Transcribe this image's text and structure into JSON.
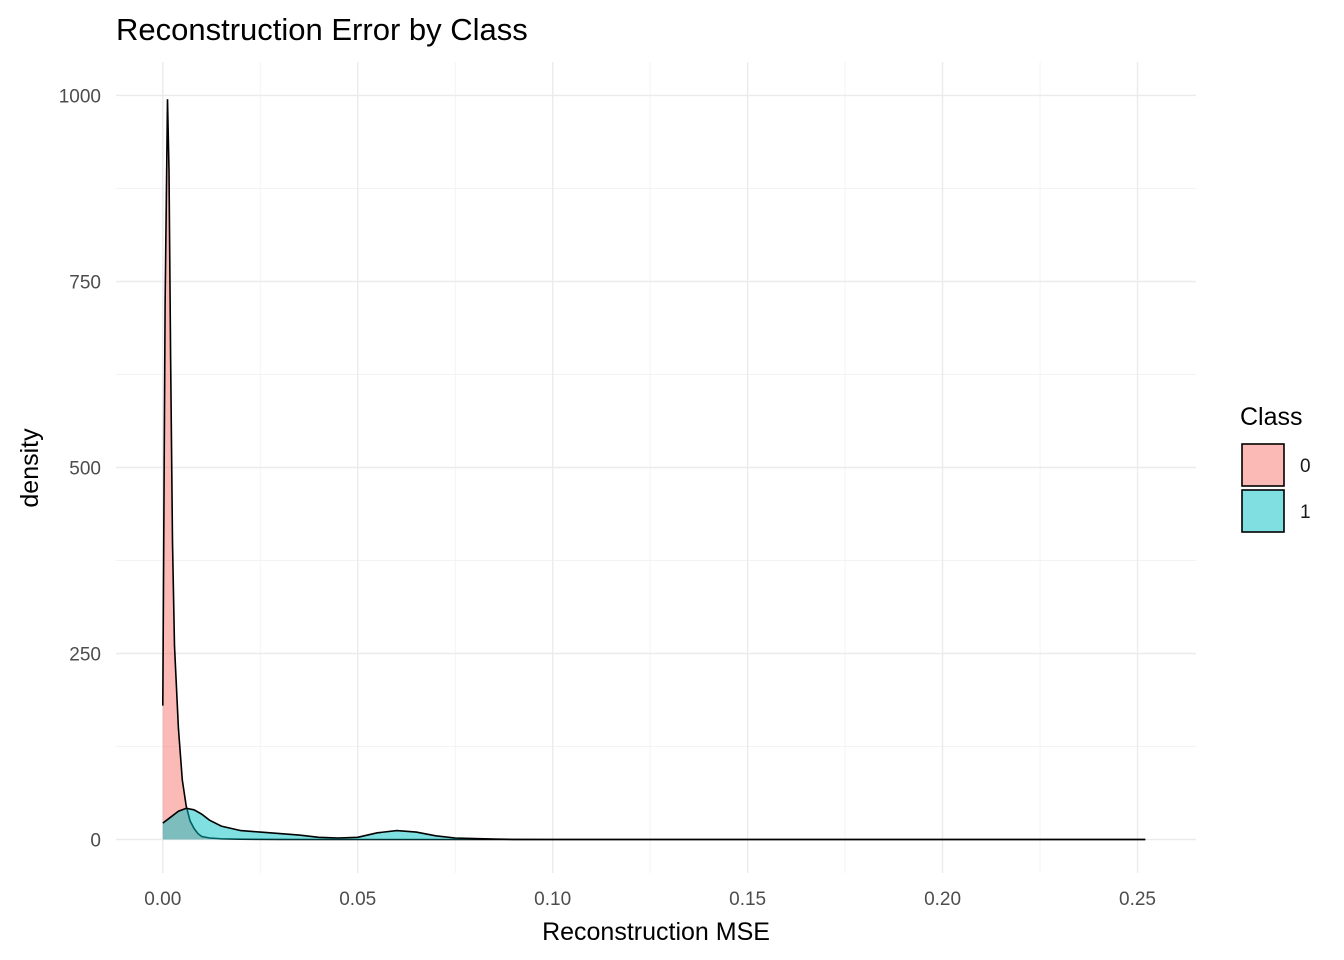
{
  "chart_data": {
    "type": "area",
    "title": "Reconstruction Error by Class",
    "xlabel": "Reconstruction MSE",
    "ylabel": "density",
    "xlim": [
      -0.012,
      0.265
    ],
    "ylim": [
      -45,
      1045
    ],
    "x_ticks": [
      0.0,
      0.05,
      0.1,
      0.15,
      0.2,
      0.25
    ],
    "x_tick_labels": [
      "0.00",
      "0.05",
      "0.10",
      "0.15",
      "0.20",
      "0.25"
    ],
    "y_ticks": [
      0,
      250,
      500,
      750,
      1000
    ],
    "y_tick_labels": [
      "0",
      "250",
      "500",
      "750",
      "1000"
    ],
    "grid": true,
    "legend": {
      "title": "Class",
      "position": "right",
      "entries": [
        "0",
        "1"
      ]
    },
    "series": [
      {
        "name": "0",
        "color": "#F8766D",
        "opacity": 0.5,
        "x": [
          0.0,
          0.0006,
          0.0012,
          0.0016,
          0.002,
          0.0025,
          0.003,
          0.004,
          0.005,
          0.006,
          0.007,
          0.008,
          0.009,
          0.01,
          0.012,
          0.015,
          0.02,
          0.03,
          0.05,
          0.1,
          0.2,
          0.252
        ],
        "y": [
          180,
          720,
          995,
          900,
          650,
          400,
          260,
          150,
          80,
          45,
          25,
          15,
          8,
          4,
          2,
          1,
          0.4,
          0.1,
          0,
          0,
          0,
          0
        ]
      },
      {
        "name": "1",
        "color": "#00BFC4",
        "opacity": 0.5,
        "x": [
          0.0,
          0.002,
          0.004,
          0.006,
          0.008,
          0.01,
          0.012,
          0.015,
          0.02,
          0.025,
          0.03,
          0.035,
          0.04,
          0.045,
          0.05,
          0.055,
          0.06,
          0.065,
          0.07,
          0.075,
          0.08,
          0.085,
          0.09,
          0.1,
          0.15,
          0.2,
          0.252
        ],
        "y": [
          22,
          30,
          38,
          42,
          40,
          34,
          26,
          18,
          12,
          10,
          8,
          6,
          3,
          2,
          3,
          9,
          12,
          10,
          5,
          2,
          1.2,
          0.5,
          0.2,
          0.05,
          0,
          0,
          0
        ]
      }
    ]
  }
}
